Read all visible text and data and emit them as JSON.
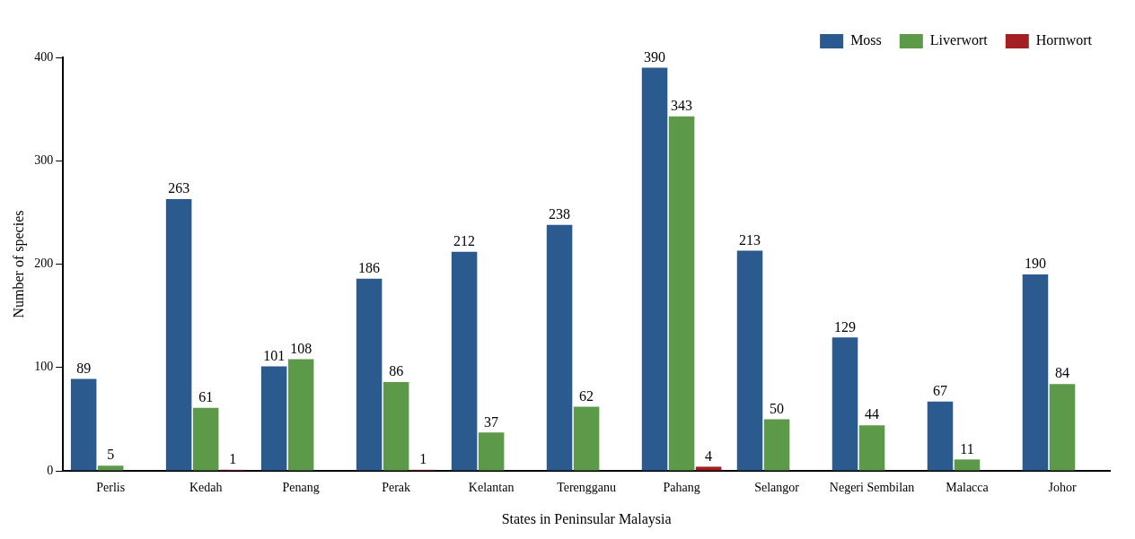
{
  "chart_data": {
    "type": "bar",
    "xlabel": "States in Peninsular Malaysia",
    "ylabel": "Number of species",
    "categories": [
      "Perlis",
      "Kedah",
      "Penang",
      "Perak",
      "Kelantan",
      "Terengganu",
      "Pahang",
      "Selangor",
      "Negeri Sembilan",
      "Malacca",
      "Johor"
    ],
    "series": [
      {
        "name": "Moss",
        "color": "#2b5a8f",
        "values": [
          89,
          263,
          101,
          186,
          212,
          238,
          390,
          213,
          129,
          67,
          190
        ]
      },
      {
        "name": "Liverwort",
        "color": "#5c9a4a",
        "values": [
          5,
          61,
          108,
          86,
          37,
          62,
          343,
          50,
          44,
          11,
          84
        ]
      },
      {
        "name": "Hornwort",
        "color": "#a31f24",
        "values": [
          null,
          1,
          null,
          1,
          null,
          null,
          4,
          null,
          null,
          null,
          null
        ]
      }
    ],
    "ylim": [
      0,
      400
    ],
    "yticks": [
      0,
      100,
      200,
      300,
      400
    ],
    "grid": false,
    "legend": "top right",
    "data_labels": true
  }
}
